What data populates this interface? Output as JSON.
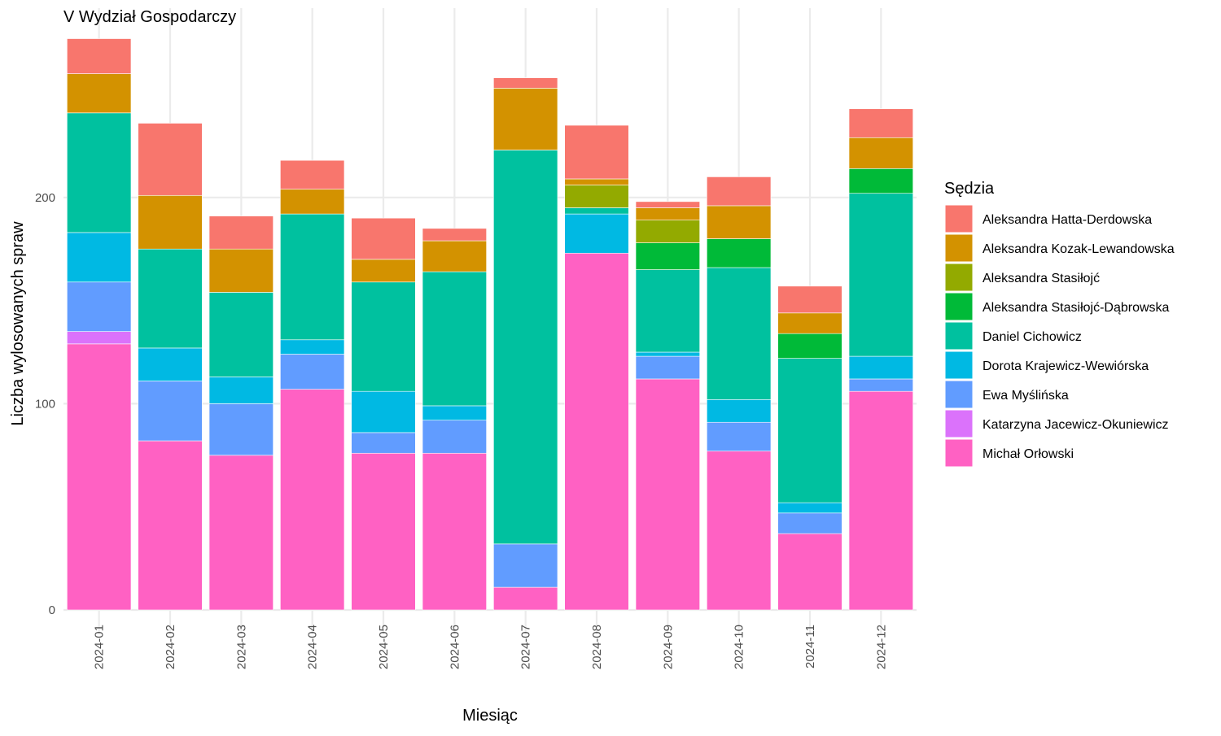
{
  "chart_data": {
    "type": "bar",
    "stacked": true,
    "title": "V Wydział Gospodarczy",
    "xlabel": "Miesiąc",
    "ylabel": "Liczba wylosowanych spraw",
    "ylim": [
      0,
      280
    ],
    "yticks": [
      0,
      100,
      200
    ],
    "grid": true,
    "legend_title": "Sędzia",
    "legend_position": "right",
    "categories": [
      "2024-01",
      "2024-02",
      "2024-03",
      "2024-04",
      "2024-05",
      "2024-06",
      "2024-07",
      "2024-08",
      "2024-09",
      "2024-10",
      "2024-11",
      "2024-12"
    ],
    "series": [
      {
        "name": "Michał Orłowski",
        "color": "#FF61C3",
        "values": [
          129,
          82,
          75,
          107,
          76,
          76,
          11,
          173,
          112,
          77,
          37,
          106
        ]
      },
      {
        "name": "Katarzyna Jacewicz-Okuniewicz",
        "color": "#DB72FB",
        "values": [
          6,
          0,
          0,
          0,
          0,
          0,
          0,
          0,
          0,
          0,
          0,
          0
        ]
      },
      {
        "name": "Ewa Myślińska",
        "color": "#619CFF",
        "values": [
          24,
          29,
          25,
          17,
          10,
          16,
          21,
          0,
          11,
          14,
          10,
          6
        ]
      },
      {
        "name": "Dorota Krajewicz-Wewiórska",
        "color": "#00B9E3",
        "values": [
          24,
          16,
          13,
          7,
          20,
          7,
          0,
          19,
          2,
          11,
          5,
          11
        ]
      },
      {
        "name": "Daniel Cichowicz",
        "color": "#00C19F",
        "values": [
          58,
          48,
          41,
          61,
          53,
          65,
          191,
          3,
          40,
          64,
          70,
          79
        ]
      },
      {
        "name": "Aleksandra Stasiłojć-Dąbrowska",
        "color": "#00BA38",
        "values": [
          0,
          0,
          0,
          0,
          0,
          0,
          0,
          0,
          13,
          14,
          12,
          12
        ]
      },
      {
        "name": "Aleksandra Stasiłojć",
        "color": "#93AA00",
        "values": [
          0,
          0,
          0,
          0,
          0,
          0,
          0,
          11,
          11,
          0,
          0,
          0
        ]
      },
      {
        "name": "Aleksandra Kozak-Lewandowska",
        "color": "#D39200",
        "values": [
          19,
          26,
          21,
          12,
          11,
          15,
          30,
          3,
          6,
          16,
          10,
          15
        ]
      },
      {
        "name": "Aleksandra Hatta-Derdowska",
        "color": "#F8766D",
        "values": [
          17,
          35,
          16,
          14,
          20,
          6,
          5,
          26,
          3,
          14,
          13,
          14
        ]
      }
    ],
    "legend_order": [
      "Aleksandra Hatta-Derdowska",
      "Aleksandra Kozak-Lewandowska",
      "Aleksandra Stasiłojć",
      "Aleksandra Stasiłojć-Dąbrowska",
      "Daniel Cichowicz",
      "Dorota Krajewicz-Wewiórska",
      "Ewa Myślińska",
      "Katarzyna Jacewicz-Okuniewicz",
      "Michał Orłowski"
    ]
  }
}
